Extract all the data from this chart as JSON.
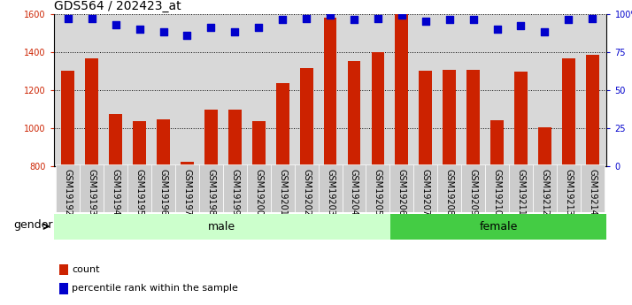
{
  "title": "GDS564 / 202423_at",
  "samples": [
    "GSM19192",
    "GSM19193",
    "GSM19194",
    "GSM19195",
    "GSM19196",
    "GSM19197",
    "GSM19198",
    "GSM19199",
    "GSM19200",
    "GSM19201",
    "GSM19202",
    "GSM19203",
    "GSM19204",
    "GSM19205",
    "GSM19206",
    "GSM19207",
    "GSM19208",
    "GSM19209",
    "GSM19210",
    "GSM19211",
    "GSM19212",
    "GSM19213",
    "GSM19214"
  ],
  "counts": [
    1300,
    1365,
    1075,
    1035,
    1045,
    825,
    1095,
    1095,
    1035,
    1235,
    1315,
    1580,
    1350,
    1400,
    1600,
    1300,
    1305,
    1305,
    1040,
    1295,
    1005,
    1365,
    1385
  ],
  "percentile_ranks": [
    97,
    97,
    93,
    90,
    88,
    86,
    91,
    88,
    91,
    96,
    97,
    99,
    96,
    97,
    99,
    95,
    96,
    96,
    90,
    92,
    88,
    96,
    97
  ],
  "male_count": 14,
  "female_count": 9,
  "male_label": "male",
  "female_label": "female",
  "ylim_left": [
    800,
    1600
  ],
  "ylim_right": [
    0,
    100
  ],
  "yticks_left": [
    800,
    1000,
    1200,
    1400,
    1600
  ],
  "yticks_right": [
    0,
    25,
    50,
    75,
    100
  ],
  "bar_color": "#cc2200",
  "dot_color": "#0000cc",
  "male_bg": "#ccffcc",
  "female_bg": "#44cc44",
  "tick_bg": "#cccccc",
  "plot_bg": "#d8d8d8",
  "left_axis_color": "#cc2200",
  "right_axis_color": "#0000cc",
  "legend_bar_label": "count",
  "legend_dot_label": "percentile rank within the sample",
  "gender_label": "gender",
  "title_fontsize": 10,
  "tick_fontsize": 7,
  "legend_fontsize": 8,
  "gender_fontsize": 9
}
